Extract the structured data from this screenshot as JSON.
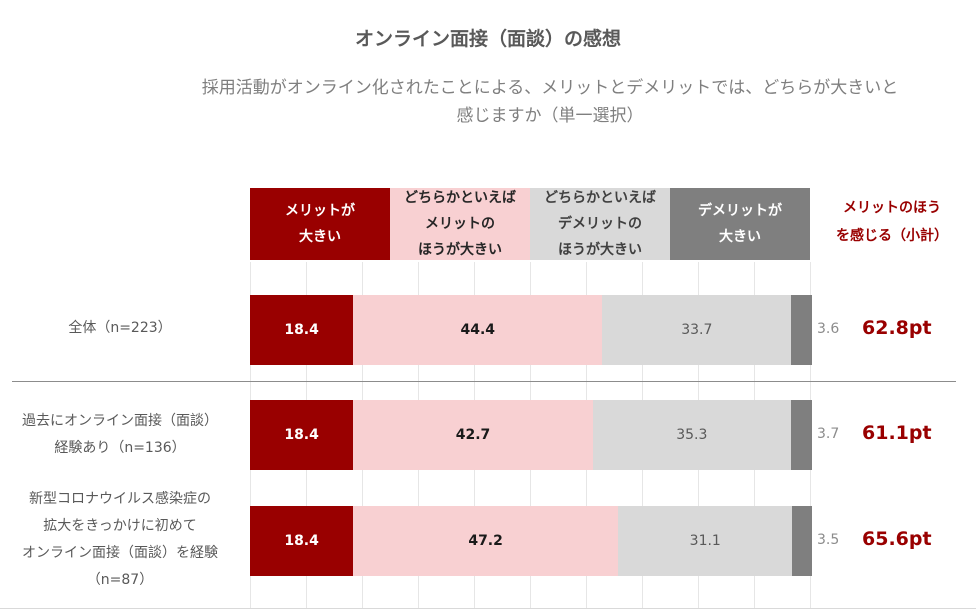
{
  "title": "オンライン面接（面談）の感想",
  "subtitle": "採用活動がオンライン化されたことによる、メリットとデメリットでは、どちらが大きいと\n感じますか（単一選択）",
  "legend": [
    {
      "label": "メリットが\n大きい",
      "color": "#990000",
      "text_color": "#ffffff"
    },
    {
      "label": "どちらかといえば\nメリットの\nほうが大きい",
      "color": "#f8d0d2",
      "text_color": "#262626"
    },
    {
      "label": "どちらかといえば\nデメリットの\nほうが大きい",
      "color": "#d9d9d9",
      "text_color": "#404040"
    },
    {
      "label": "デメリットが\n大きい",
      "color": "#7f7f7f",
      "text_color": "#ffffff"
    }
  ],
  "total_label": "メリットのほう\nを感じる（小計）",
  "chart_data": {
    "type": "bar",
    "orientation": "horizontal",
    "stacked": true,
    "xlim": [
      0,
      100
    ],
    "categories": [
      "全体（n=223）",
      "過去にオンライン面接（面談）\n経験あり（n=136）",
      "新型コロナウイルス感染症の\n拡大をきっかけに初めて\nオンライン面接（面談）を経験\n（n=87）"
    ],
    "series": [
      {
        "name": "メリットが大きい",
        "values": [
          18.4,
          18.4,
          18.4
        ]
      },
      {
        "name": "どちらかといえばメリットのほうが大きい",
        "values": [
          44.4,
          42.7,
          47.2
        ]
      },
      {
        "name": "どちらかといえばデメリットのほうが大きい",
        "values": [
          33.7,
          35.3,
          31.1
        ]
      },
      {
        "name": "デメリットが大きい",
        "values": [
          3.6,
          3.7,
          3.5
        ]
      }
    ],
    "value_labels": [
      [
        "18.4",
        "44.4",
        "33.7",
        "3.6"
      ],
      [
        "18.4",
        "42.7",
        "35.3",
        "3.7"
      ],
      [
        "18.4",
        "47.2",
        "31.1",
        "3.5"
      ]
    ],
    "subtotals": [
      "62.8pt",
      "61.1pt",
      "65.6pt"
    ]
  }
}
